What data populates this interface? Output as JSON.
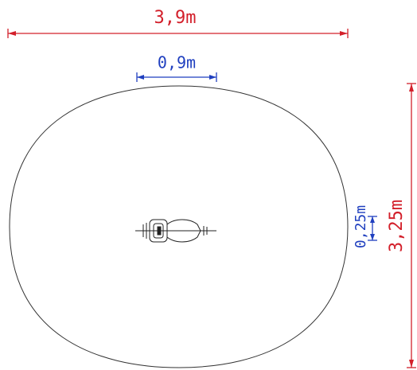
{
  "dimensions": {
    "overall_width": "3,9m",
    "item_width": "0,9m",
    "item_clearance": "0,25m",
    "overall_depth": "3,25m"
  }
}
